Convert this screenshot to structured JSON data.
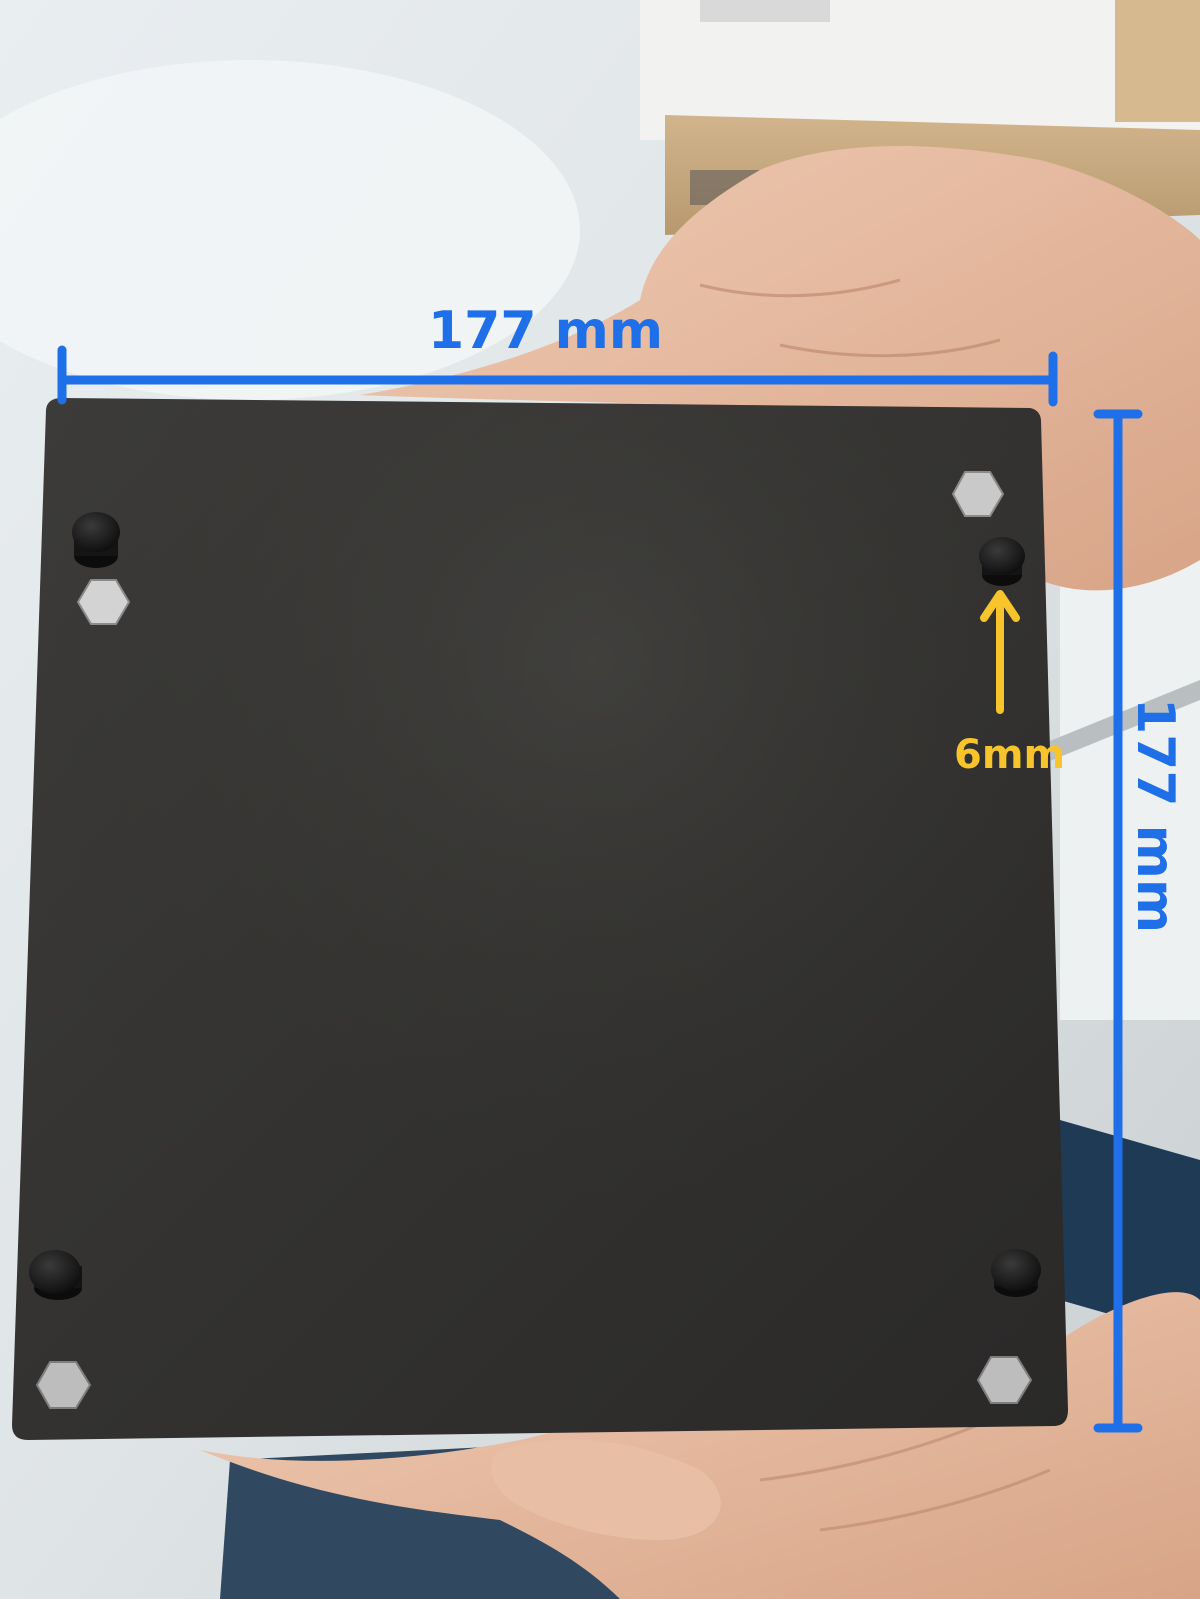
{
  "annotations": {
    "width_label": "177 mm",
    "height_label": "177 mm",
    "foot_height_label": "6mm"
  },
  "colors": {
    "dimension_line": "#1f6fe8",
    "foot_arrow": "#f7c52b",
    "plate": "#353432",
    "hex_pad": "#c9c9c9",
    "rubber_foot": "#161616",
    "skin": "#e3b79b",
    "cardboard": "#c9a880"
  },
  "icons": {
    "dimension_arrow": "dimension-bar-icon",
    "height_arrow": "up-arrow-icon"
  }
}
